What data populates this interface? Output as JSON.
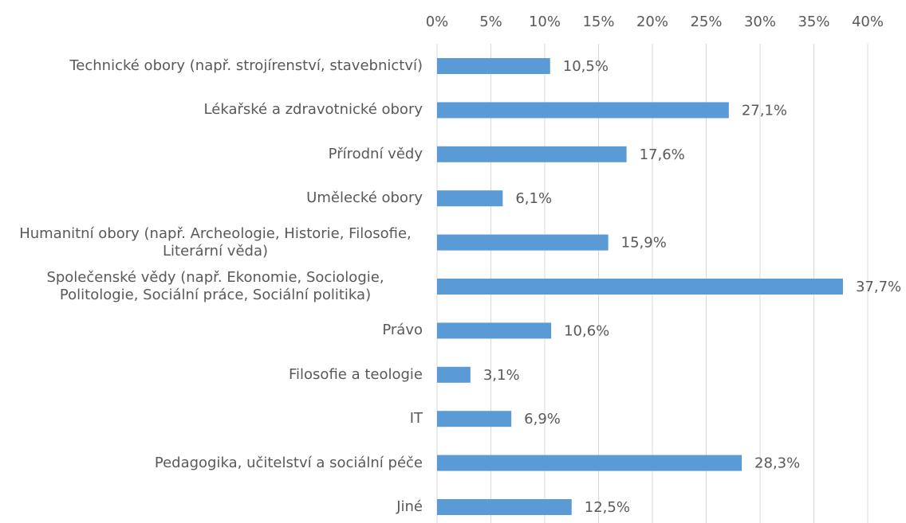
{
  "chart_data": {
    "type": "bar",
    "orientation": "horizontal",
    "categories": [
      "Technické obory (např. strojírenství, stavebnictví)",
      "Lékařské a zdravotnické obory",
      "Přírodní vědy",
      "Umělecké obory",
      "Humanitní obory (např. Archeologie, Historie, Filosofie, Literární věda)",
      "Společenské vědy (např. Ekonomie, Sociologie, Politologie, Sociální práce, Sociální politika)",
      "Právo",
      "Filosofie a teologie",
      "IT",
      "Pedagogika, učitelství a sociální péče",
      "Jiné"
    ],
    "values": [
      10.5,
      27.1,
      17.6,
      6.1,
      15.9,
      37.7,
      10.6,
      3.1,
      6.9,
      28.3,
      12.5
    ],
    "value_labels": [
      "10,5%",
      "27,1%",
      "17,6%",
      "6,1%",
      "15,9%",
      "37,7%",
      "10,6%",
      "3,1%",
      "6,9%",
      "28,3%",
      "12,5%"
    ],
    "color": "#5b9bd5",
    "xlim": [
      0,
      40
    ],
    "xticks": [
      {
        "value": 0,
        "label": "0%"
      },
      {
        "value": 5,
        "label": "5%"
      },
      {
        "value": 10,
        "label": "10%"
      },
      {
        "value": 15,
        "label": "15%"
      },
      {
        "value": 20,
        "label": "20%"
      },
      {
        "value": 25,
        "label": "25%"
      },
      {
        "value": 30,
        "label": "30%"
      },
      {
        "value": 35,
        "label": "35%"
      },
      {
        "value": 40,
        "label": "40%"
      }
    ],
    "grid": true
  }
}
